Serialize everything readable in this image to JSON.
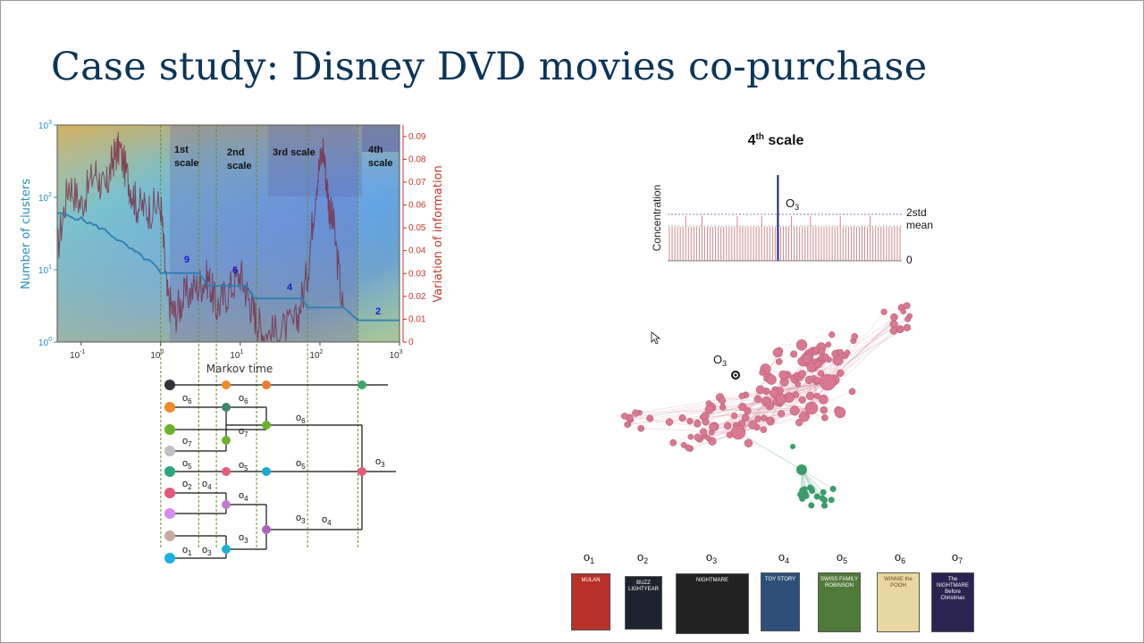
{
  "slide": {
    "title": "Case study: Disney DVD movies co-purchase"
  },
  "left_panel": {
    "chart_data": {
      "type": "line",
      "xlabel": "Markov time",
      "xscale": "log",
      "xlim": [
        0.05,
        1000
      ],
      "x_ticks": [
        "10",
        "10",
        "10",
        "10",
        "10"
      ],
      "x_tick_exponents": [
        "-1",
        "0",
        "1",
        "2",
        "3"
      ],
      "ylabel_left": "Number of clusters",
      "yscale_left": "log",
      "ylim_left": [
        1,
        1000
      ],
      "y_ticks_left": [
        "10",
        "10",
        "10",
        "10"
      ],
      "y_tick_exponents_left": [
        "0",
        "1",
        "2",
        "3"
      ],
      "ylabel_right": "Variation of information",
      "ylim_right": [
        0,
        0.095
      ],
      "y_ticks_right": [
        "0",
        "0.01",
        "0.02",
        "0.03",
        "0.04",
        "0.05",
        "0.06",
        "0.07",
        "0.08",
        "0.09"
      ],
      "scale_labels": [
        {
          "line1": "1st",
          "line2": "scale"
        },
        {
          "line1": "2nd",
          "line2": "scale"
        },
        {
          "line1": "3rd scale",
          "line2": ""
        },
        {
          "line1": "4th",
          "line2": "scale"
        }
      ],
      "plateau_labels": [
        "9",
        "6",
        "4",
        "2"
      ],
      "series": [
        {
          "name": "Number of clusters",
          "color": "#2a7fb5",
          "x": [
            0.05,
            0.1,
            0.2,
            0.4,
            0.8,
            1.0,
            1.3,
            3.0,
            4.0,
            6.0,
            12,
            15,
            60,
            70,
            200,
            300,
            1000
          ],
          "y": [
            60,
            50,
            35,
            20,
            12,
            9,
            9,
            9,
            6,
            6,
            6,
            4,
            4,
            3,
            3,
            2,
            2
          ]
        },
        {
          "name": "Variation of information",
          "color": "#7a2a40",
          "x": [
            0.05,
            0.07,
            0.1,
            0.15,
            0.2,
            0.25,
            0.3,
            0.4,
            0.5,
            0.7,
            1.0,
            1.2,
            1.5,
            2.0,
            3.0,
            4.0,
            5.0,
            7.0,
            10,
            13,
            16,
            20,
            30,
            50,
            70,
            90,
            110,
            130,
            150,
            200
          ],
          "y": [
            0.04,
            0.07,
            0.06,
            0.075,
            0.065,
            0.08,
            0.085,
            0.07,
            0.06,
            0.058,
            0.06,
            0.02,
            0.012,
            0.02,
            0.025,
            0.028,
            0.015,
            0.022,
            0.03,
            0.018,
            0.01,
            0.003,
            0.004,
            0.008,
            0.03,
            0.07,
            0.085,
            0.06,
            0.05,
            0.01
          ]
        }
      ]
    },
    "dendrogram": {
      "node_labels": [
        {
          "text": "o",
          "sub": "6"
        },
        {
          "text": "o",
          "sub": "6"
        },
        {
          "text": "o",
          "sub": "6"
        },
        {
          "text": "o",
          "sub": "7"
        },
        {
          "text": "o",
          "sub": "7"
        },
        {
          "text": "o",
          "sub": "5"
        },
        {
          "text": "o",
          "sub": "5"
        },
        {
          "text": "o",
          "sub": "5"
        },
        {
          "text": "o",
          "sub": "3"
        },
        {
          "text": "o",
          "sub": "2"
        },
        {
          "text": "o",
          "sub": "4"
        },
        {
          "text": "o",
          "sub": "4"
        },
        {
          "text": "o",
          "sub": "3"
        },
        {
          "text": "o",
          "sub": "4"
        },
        {
          "text": "o",
          "sub": "3"
        },
        {
          "text": "o",
          "sub": "1"
        },
        {
          "text": "o",
          "sub": "3"
        }
      ]
    }
  },
  "right_panel": {
    "concentration_chart": {
      "type": "bar",
      "title_main": "4",
      "title_sup": "th",
      "title_rest": " scale",
      "ylabel": "Concentration",
      "highlight_label": "O",
      "highlight_sub": "3",
      "ref_labels": [
        "2std",
        "mean",
        "0"
      ],
      "bar_color": "#d08a8a",
      "highlight_color": "#1a237e",
      "bar_count": 86,
      "highlight_index": 40,
      "tall_indices": [
        6,
        12,
        25,
        34,
        45,
        52,
        63,
        74
      ]
    },
    "network": {
      "highlight_label": "O",
      "highlight_sub": "3",
      "main_color": "#d97890",
      "secondary_color": "#3a9c6c"
    },
    "movies": [
      {
        "label": "o",
        "sub": "1",
        "cover_title": "MULAN",
        "bg": "#b8322a"
      },
      {
        "label": "o",
        "sub": "2",
        "cover_title": "BUZZ LIGHTYEAR",
        "bg": "#1f2330"
      },
      {
        "label": "o",
        "sub": "3",
        "cover_title": "NIGHTMARE",
        "bg": "#222222"
      },
      {
        "label": "o",
        "sub": "4",
        "cover_title": "TOY STORY",
        "bg": "#2d4f7a"
      },
      {
        "label": "o",
        "sub": "5",
        "cover_title": "SWISS FAMILY ROBINSON",
        "bg": "#4f7a3a"
      },
      {
        "label": "o",
        "sub": "6",
        "cover_title": "WINNIE the POOH",
        "bg": "#e8d7a0"
      },
      {
        "label": "o",
        "sub": "7",
        "cover_title": "The NIGHTMARE Before Christmas",
        "bg": "#2b2350"
      }
    ]
  }
}
